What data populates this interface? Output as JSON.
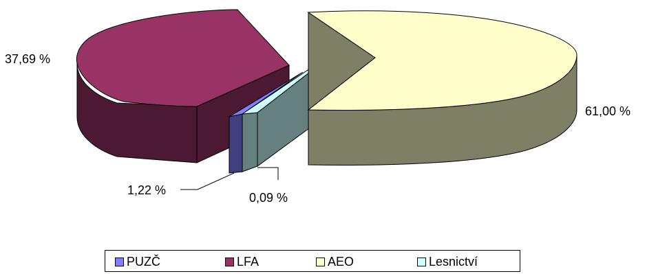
{
  "chart_data": {
    "type": "pie",
    "variant": "3d-exploded",
    "categories": [
      "PUZČ",
      "LFA",
      "AEO",
      "Lesnictví"
    ],
    "values": [
      1.22,
      37.69,
      61.0,
      0.09
    ],
    "data_labels": [
      "1,22 %",
      "37,69 %",
      "61,00 %",
      "0,09 %"
    ],
    "colors": {
      "PUZČ": "#8080ff",
      "LFA": "#993366",
      "AEO": "#ffffcc",
      "Lesnictví": "#ccffff"
    },
    "side_colors": {
      "PUZČ": "#40407f",
      "LFA": "#4c1932",
      "AEO": "#7f7f66",
      "Lesnictví": "#667f7f"
    },
    "legend": {
      "position": "bottom",
      "entries": [
        "PUZČ",
        "LFA",
        "AEO",
        "Lesnictví"
      ]
    }
  }
}
